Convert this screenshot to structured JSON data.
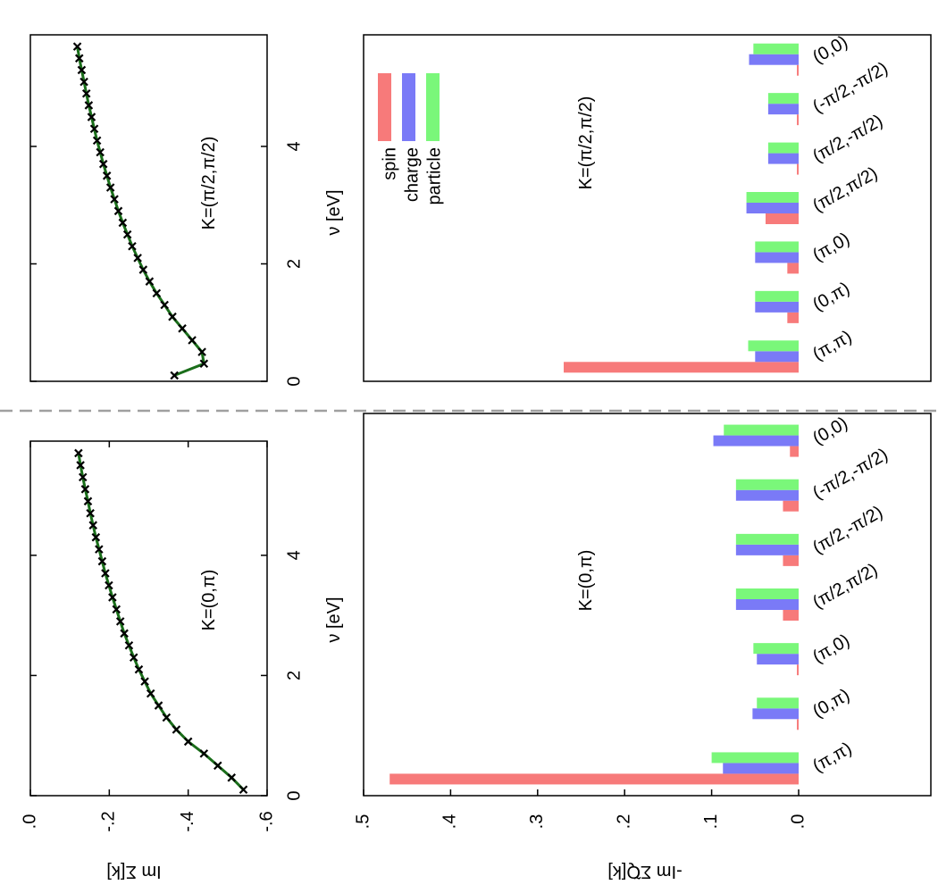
{
  "figure": {
    "divider_color": "#a0a0a0"
  },
  "colors": {
    "spin": "#f77a7a",
    "charge": "#7a7af7",
    "particle": "#7af77a",
    "line": "#1a6e1a",
    "marker": "#000000"
  },
  "chart_data": [
    {
      "type": "line",
      "panel": "top-left",
      "annotation": "K=(0,π)",
      "xlabel": "ν [eV]",
      "ylabel": "Im Σ[k]",
      "xlim": [
        0,
        5.9
      ],
      "ylim": [
        0.0,
        -0.6
      ],
      "xticks": [
        "0",
        "2",
        "4"
      ],
      "yticks": [
        ".0",
        "-.2",
        "-.4",
        "-.6"
      ],
      "x": [
        0.1,
        0.3,
        0.5,
        0.7,
        0.9,
        1.1,
        1.3,
        1.5,
        1.7,
        1.9,
        2.1,
        2.3,
        2.5,
        2.7,
        2.9,
        3.1,
        3.3,
        3.5,
        3.7,
        3.9,
        4.1,
        4.3,
        4.5,
        4.7,
        4.9,
        5.1,
        5.3,
        5.5,
        5.7
      ],
      "y": [
        -0.54,
        -0.51,
        -0.475,
        -0.44,
        -0.4,
        -0.37,
        -0.345,
        -0.325,
        -0.305,
        -0.29,
        -0.275,
        -0.262,
        -0.25,
        -0.238,
        -0.228,
        -0.218,
        -0.208,
        -0.199,
        -0.19,
        -0.182,
        -0.174,
        -0.166,
        -0.159,
        -0.152,
        -0.146,
        -0.139,
        -0.133,
        -0.127,
        -0.122
      ]
    },
    {
      "type": "line",
      "panel": "top-right",
      "annotation": "K=(π/2,π/2)",
      "xlabel": "ν [eV]",
      "ylabel": "",
      "xlim": [
        0,
        5.9
      ],
      "ylim": [
        0.0,
        -0.6
      ],
      "xticks": [
        "0",
        "2",
        "4"
      ],
      "x": [
        0.1,
        0.3,
        0.5,
        0.7,
        0.9,
        1.1,
        1.3,
        1.5,
        1.7,
        1.9,
        2.1,
        2.3,
        2.5,
        2.7,
        2.9,
        3.1,
        3.3,
        3.5,
        3.7,
        3.9,
        4.1,
        4.3,
        4.5,
        4.7,
        4.9,
        5.1,
        5.3,
        5.5,
        5.7
      ],
      "y": [
        -0.365,
        -0.44,
        -0.435,
        -0.41,
        -0.385,
        -0.36,
        -0.34,
        -0.32,
        -0.302,
        -0.286,
        -0.272,
        -0.258,
        -0.246,
        -0.234,
        -0.223,
        -0.213,
        -0.203,
        -0.194,
        -0.185,
        -0.177,
        -0.169,
        -0.162,
        -0.155,
        -0.148,
        -0.142,
        -0.136,
        -0.13,
        -0.124,
        -0.119
      ]
    },
    {
      "type": "bar",
      "panel": "bottom-left",
      "annotation": "K=(0,π)",
      "ylabel": "-Im Σ̃Q[k]",
      "ylim": [
        0.0,
        0.5
      ],
      "yticks": [
        ".5",
        ".4",
        ".3",
        ".2",
        ".1",
        ".0"
      ],
      "categories": [
        "(π,π)",
        "(0,π)",
        "(π,0)",
        "(π/2,π/2)",
        "(π/2,-π/2)",
        "(-π/2,-π/2)",
        "(0,0)"
      ],
      "series": [
        {
          "name": "spin",
          "values": [
            0.47,
            0.002,
            0.002,
            0.018,
            0.018,
            0.018,
            0.01
          ]
        },
        {
          "name": "charge",
          "values": [
            0.087,
            0.053,
            0.048,
            0.072,
            0.072,
            0.072,
            0.098
          ]
        },
        {
          "name": "particle",
          "values": [
            0.1,
            0.048,
            0.052,
            0.072,
            0.072,
            0.072,
            0.086
          ]
        }
      ]
    },
    {
      "type": "bar",
      "panel": "bottom-right",
      "annotation": "K=(π/2,π/2)",
      "ylim": [
        0.0,
        0.5
      ],
      "categories": [
        "(π,π)",
        "(0,π)",
        "(π,0)",
        "(π/2,π/2)",
        "(π/2,-π/2)",
        "(-π/2,-π/2)",
        "(0,0)"
      ],
      "legend": {
        "placement": "top-right",
        "entries": [
          "spin",
          "charge",
          "particle"
        ]
      },
      "series": [
        {
          "name": "spin",
          "values": [
            0.27,
            0.013,
            0.013,
            0.038,
            0.002,
            0.002,
            0.002
          ]
        },
        {
          "name": "charge",
          "values": [
            0.05,
            0.05,
            0.05,
            0.06,
            0.035,
            0.035,
            0.057
          ]
        },
        {
          "name": "particle",
          "values": [
            0.058,
            0.05,
            0.05,
            0.06,
            0.035,
            0.035,
            0.052
          ]
        }
      ]
    }
  ]
}
